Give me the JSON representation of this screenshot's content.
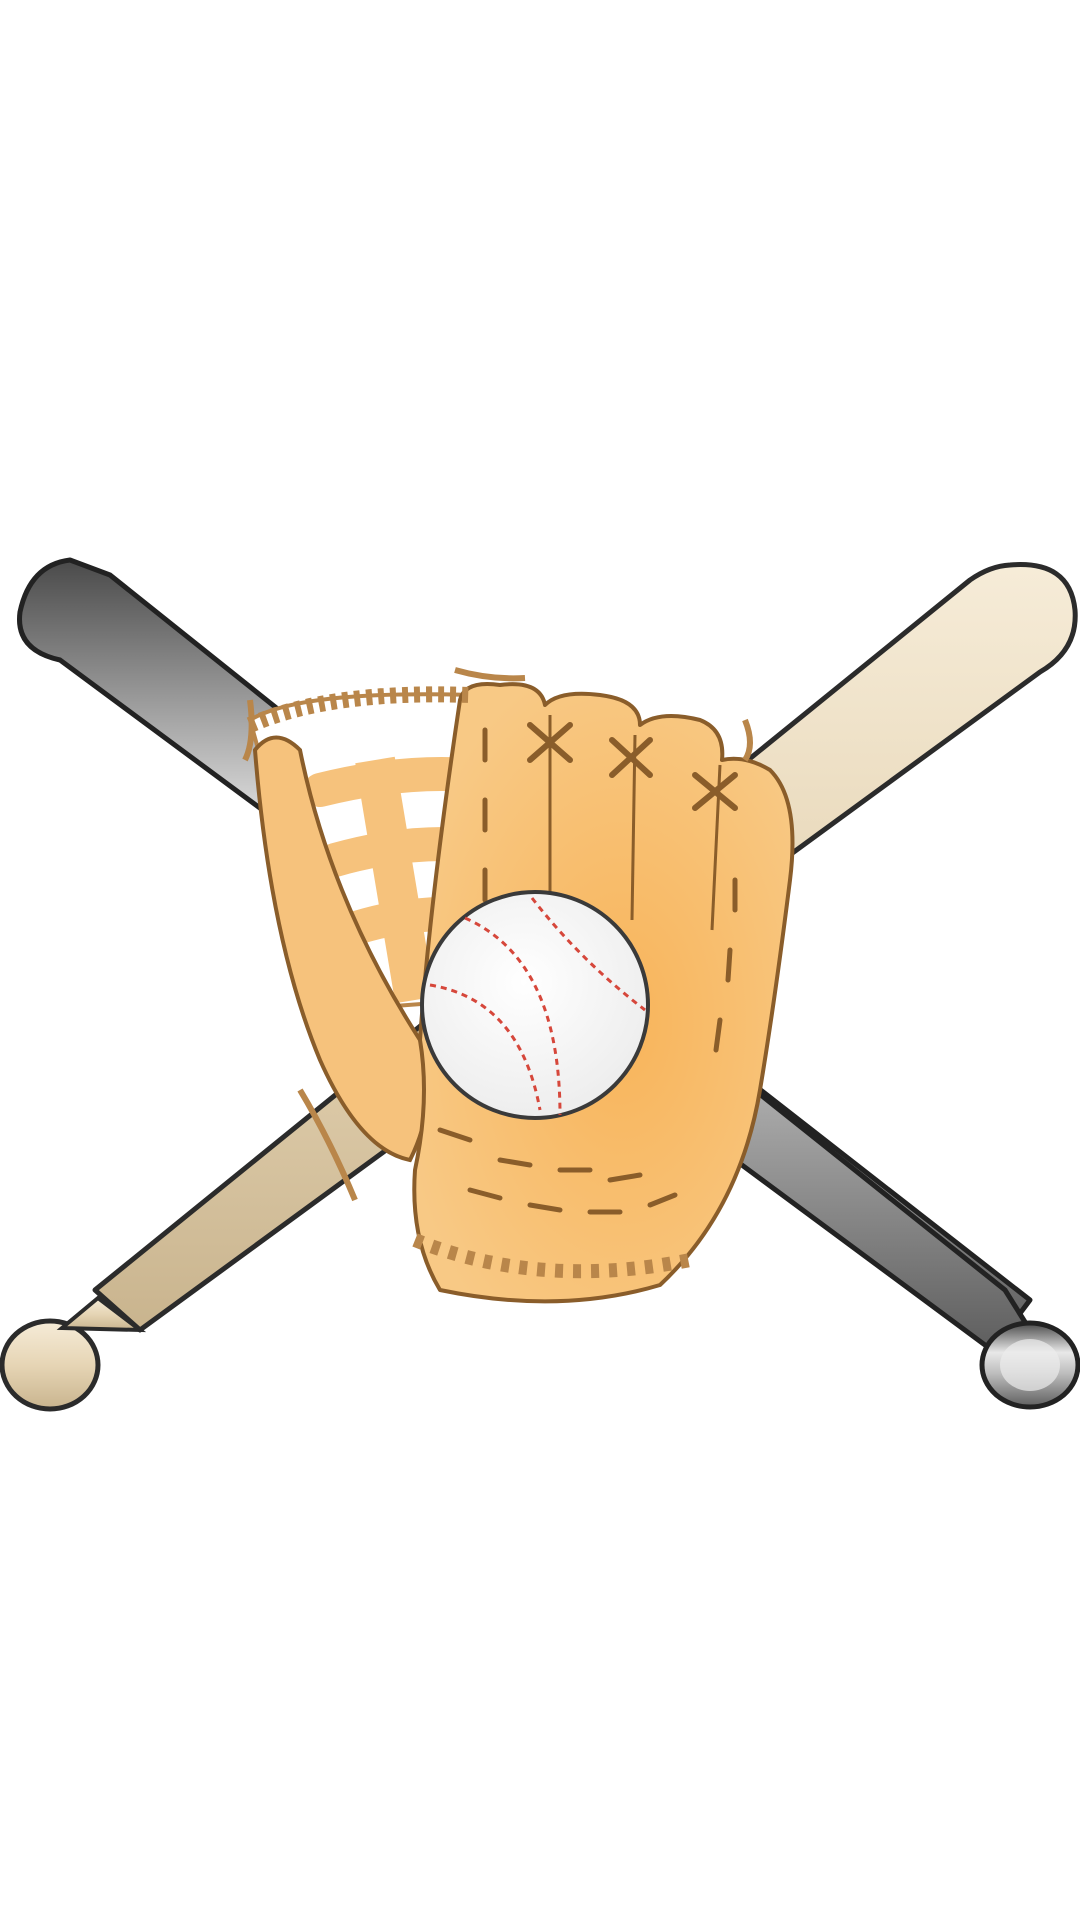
{
  "image": {
    "subject": "baseball-bats-glove-and-ball",
    "background_color": "#ffffff",
    "colors": {
      "wood_bat": "#e9dbc0",
      "metal_bat": "#8a8a8a",
      "glove": "#f6c27c",
      "glove_outline": "#b9864a",
      "ball": "#ffffff",
      "stitch": "#d6473b"
    }
  }
}
